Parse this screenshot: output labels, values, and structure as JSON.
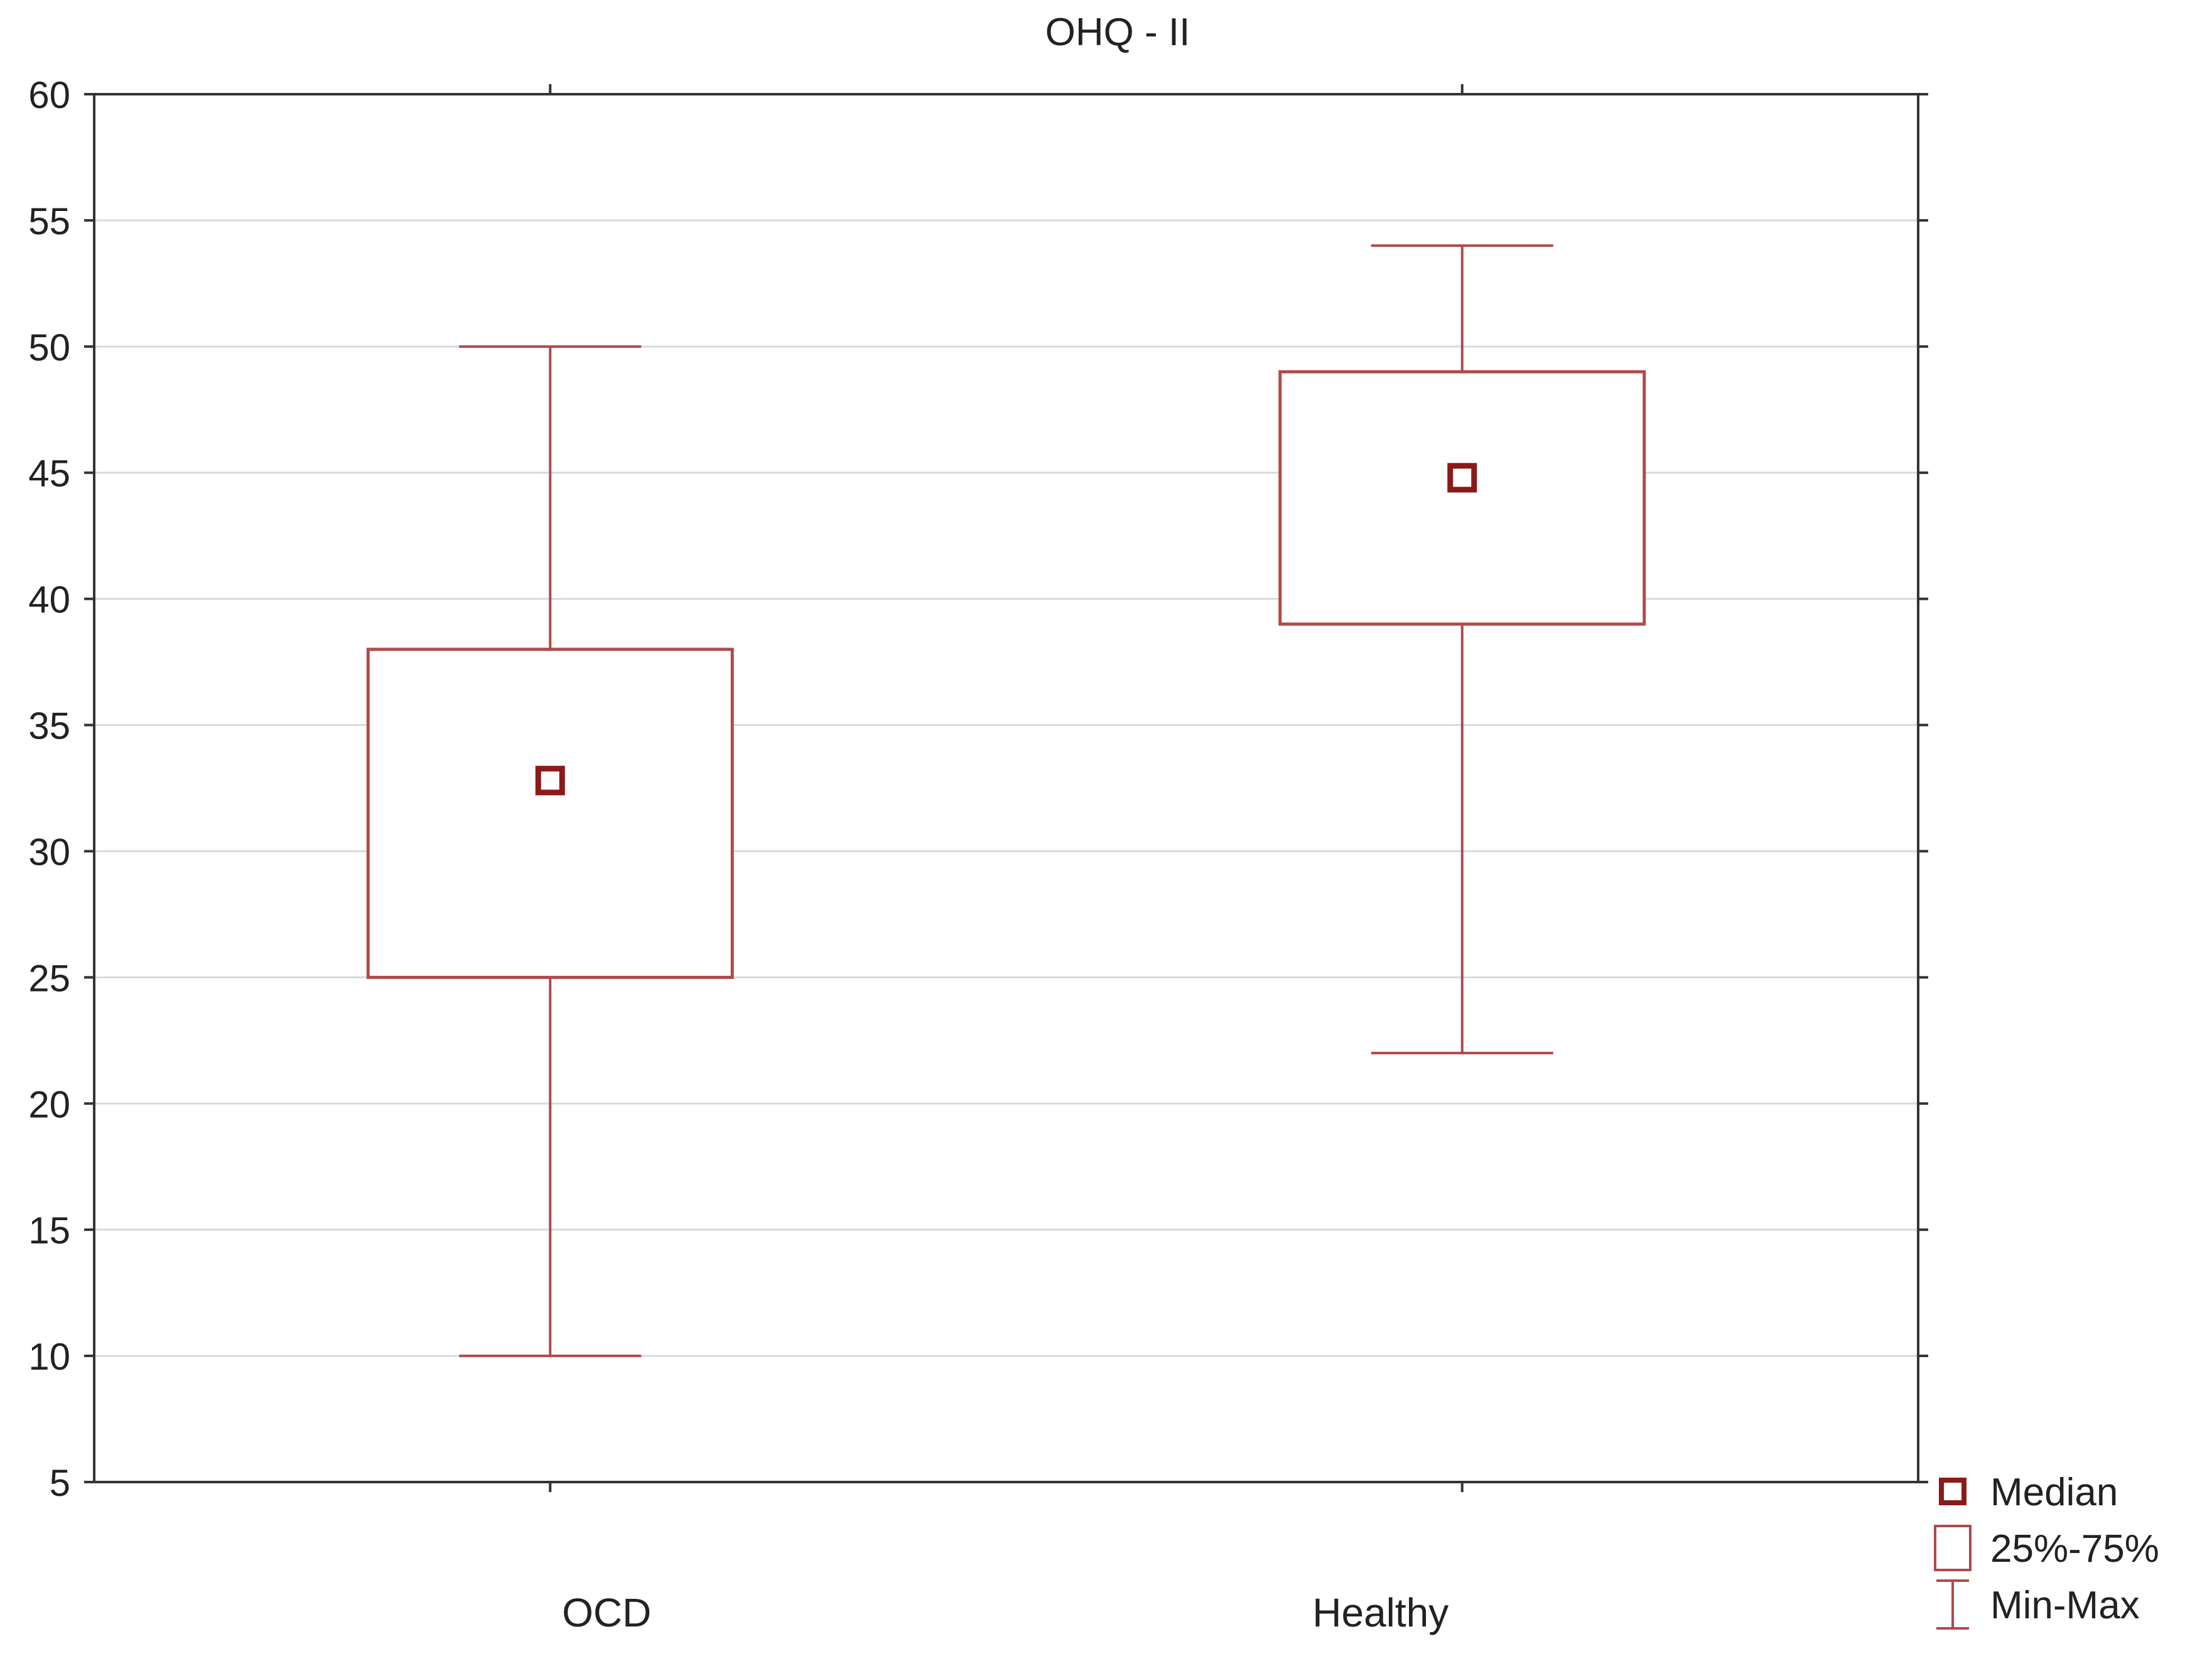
{
  "chart_data": {
    "type": "boxplot",
    "title": "OHQ - II",
    "xlabel": "",
    "ylabel": "",
    "ylim": [
      5,
      60
    ],
    "yticks": [
      5,
      10,
      15,
      20,
      25,
      30,
      35,
      40,
      45,
      50,
      55,
      60
    ],
    "grid": true,
    "categories": [
      "OCD",
      "Healthy"
    ],
    "boxes": [
      {
        "category": "OCD",
        "min": 10,
        "q1": 25,
        "median": 32.8,
        "q3": 38,
        "max": 50
      },
      {
        "category": "Healthy",
        "min": 22,
        "q1": 39,
        "median": 44.8,
        "q3": 49,
        "max": 54
      }
    ],
    "legend": {
      "position": "bottom-right",
      "items": [
        {
          "symbol": "median-marker",
          "label": "Median"
        },
        {
          "symbol": "box",
          "label": "25%-75%"
        },
        {
          "symbol": "whisker",
          "label": "Min-Max"
        }
      ]
    },
    "colors": {
      "series": "#b04a4a",
      "median": "#8b1a1a",
      "grid": "#d9d9d9",
      "frame": "#333333"
    }
  }
}
